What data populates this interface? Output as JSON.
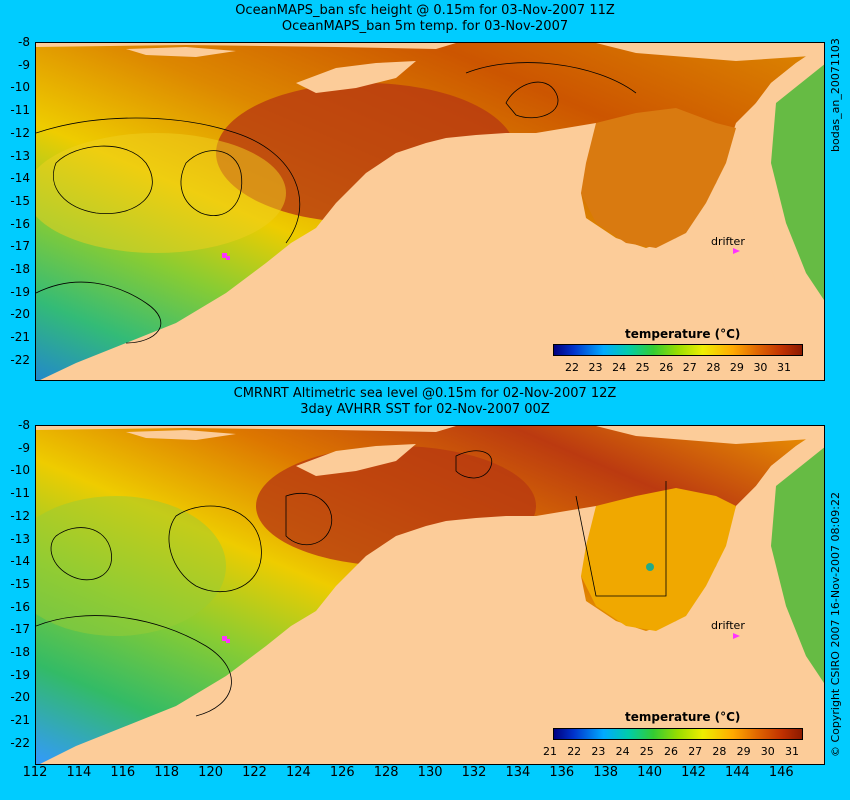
{
  "top": {
    "title1": "OceanMAPS_ban sfc height @ 0.15m for 03-Nov-2007 11Z",
    "title2": "OceanMAPS_ban 5m temp. for 03-Nov-2007",
    "side_label": "bodas_an_20071103",
    "colorbar_title": "temperature (°C)",
    "colorbar_ticks": [
      "22",
      "23",
      "24",
      "25",
      "26",
      "27",
      "28",
      "29",
      "30",
      "31"
    ],
    "drifter_label": "drifter"
  },
  "bottom": {
    "title1": "CMRNRT Altimetric sea level  @0.15m  for 02-Nov-2007 12Z",
    "title2": "3day AVHRR SST for 02-Nov-2007 00Z",
    "side_label": "© Copyright CSIRO 2007  16-Nov-2007 08:09:22",
    "colorbar_title": "temperature (°C)",
    "colorbar_ticks": [
      "21",
      "22",
      "23",
      "24",
      "25",
      "26",
      "27",
      "28",
      "29",
      "30",
      "31"
    ],
    "drifter_label": "drifter"
  },
  "y_ticks": [
    "-8",
    "-9",
    "-10",
    "-11",
    "-12",
    "-13",
    "-14",
    "-15",
    "-16",
    "-17",
    "-18",
    "-19",
    "-20",
    "-21",
    "-22"
  ],
  "x_ticks": [
    "112",
    "114",
    "116",
    "118",
    "120",
    "122",
    "124",
    "126",
    "128",
    "130",
    "132",
    "134",
    "136",
    "138",
    "140",
    "142",
    "144",
    "146"
  ],
  "colors": {
    "background": "#00ccff",
    "land": "#fccc99",
    "drifter": "#ff33ff"
  }
}
